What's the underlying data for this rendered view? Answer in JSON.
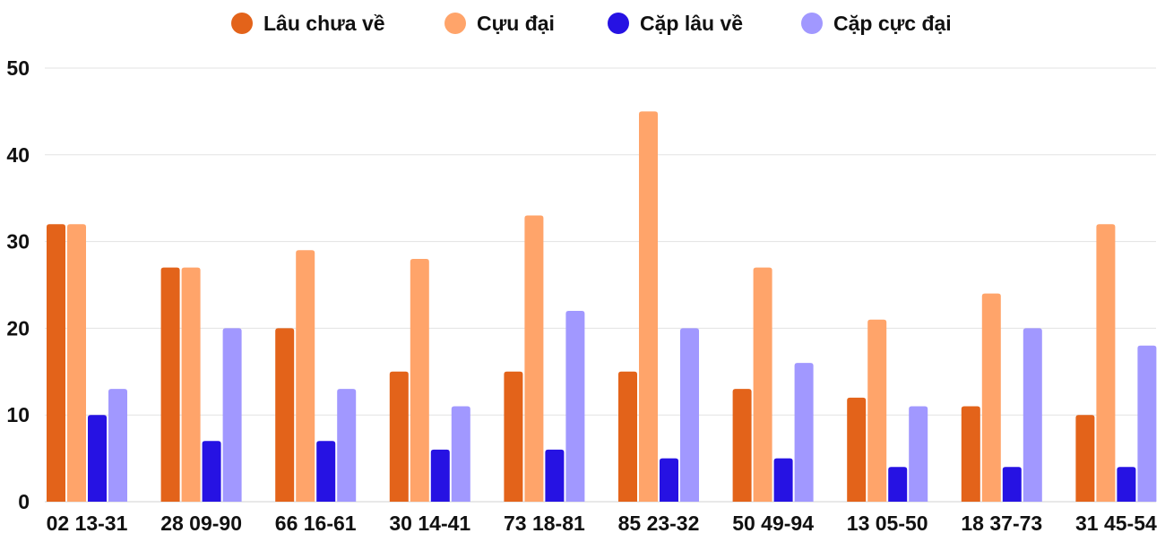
{
  "chart_data": {
    "type": "bar",
    "title": "",
    "xlabel": "",
    "ylabel": "",
    "ylim": [
      0,
      50
    ],
    "yticks": [
      0,
      10,
      20,
      30,
      40,
      50
    ],
    "grid": true,
    "legend_position": "top",
    "categories": [
      "02 13-31",
      "28 09-90",
      "66 16-61",
      "30 14-41",
      "73 18-81",
      "85 23-32",
      "50 49-94",
      "13 05-50",
      "18 37-73",
      "31 45-54"
    ],
    "series": [
      {
        "name": "Lâu chưa về",
        "color": "#E3631A",
        "values": [
          32,
          27,
          20,
          15,
          15,
          15,
          13,
          12,
          11,
          10
        ]
      },
      {
        "name": "Cựu đại",
        "color": "#FFA46A",
        "values": [
          32,
          27,
          29,
          28,
          33,
          45,
          27,
          21,
          24,
          32
        ]
      },
      {
        "name": "Cặp lâu về",
        "color": "#2612E3",
        "values": [
          10,
          7,
          7,
          6,
          6,
          5,
          5,
          4,
          4,
          4
        ]
      },
      {
        "name": "Cặp cực đại",
        "color": "#A198FF",
        "values": [
          13,
          20,
          13,
          11,
          22,
          20,
          16,
          11,
          20,
          18
        ]
      }
    ]
  }
}
